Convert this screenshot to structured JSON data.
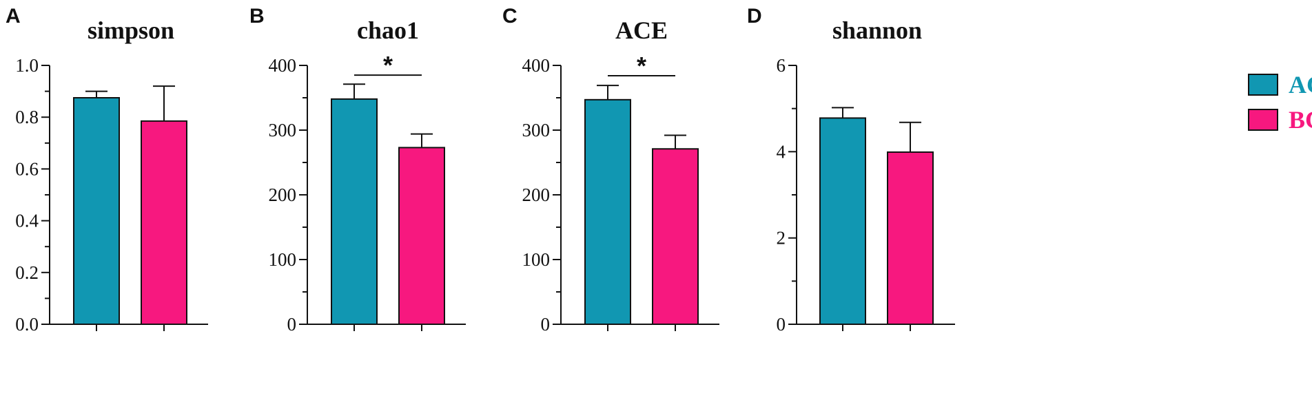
{
  "figure": {
    "panels": [
      "A",
      "B",
      "C",
      "D"
    ]
  },
  "colors": {
    "AG": "#1197b2",
    "BC": "#f7187f",
    "axis": "#111111"
  },
  "legend": [
    {
      "name": "AG",
      "color": "#1197b2"
    },
    {
      "name": "BC",
      "color": "#f7187f"
    }
  ],
  "chart_data": [
    {
      "panel": "A",
      "type": "bar",
      "title": "simpson",
      "categories": [
        "AG",
        "BC"
      ],
      "values": [
        0.875,
        0.785
      ],
      "errors": [
        0.025,
        0.135
      ],
      "ylim": [
        0,
        1.0
      ],
      "yticks": [
        "0.0",
        "0.2",
        "0.4",
        "0.6",
        "0.8",
        "1.0"
      ],
      "ytick_values": [
        0,
        0.2,
        0.4,
        0.6,
        0.8,
        1.0
      ],
      "minor_step": 0.1,
      "significance": null
    },
    {
      "panel": "B",
      "type": "bar",
      "title": "chao1",
      "categories": [
        "AG",
        "BC"
      ],
      "values": [
        348,
        273
      ],
      "errors": [
        23,
        21
      ],
      "ylim": [
        0,
        400
      ],
      "yticks": [
        "0",
        "100",
        "200",
        "300",
        "400"
      ],
      "ytick_values": [
        0,
        100,
        200,
        300,
        400
      ],
      "minor_step": 50,
      "significance": {
        "label": "*",
        "level": 385
      }
    },
    {
      "panel": "C",
      "type": "bar",
      "title": "ACE",
      "categories": [
        "AG",
        "BC"
      ],
      "values": [
        347,
        271
      ],
      "errors": [
        22,
        21
      ],
      "ylim": [
        0,
        400
      ],
      "yticks": [
        "0",
        "100",
        "200",
        "300",
        "400"
      ],
      "ytick_values": [
        0,
        100,
        200,
        300,
        400
      ],
      "minor_step": 50,
      "significance": {
        "label": "*",
        "level": 384
      }
    },
    {
      "panel": "D",
      "type": "bar",
      "title": "shannon",
      "categories": [
        "AG",
        "BC"
      ],
      "values": [
        4.78,
        3.99
      ],
      "errors": [
        0.24,
        0.69
      ],
      "ylim": [
        0,
        6
      ],
      "yticks": [
        "0",
        "2",
        "4",
        "6"
      ],
      "ytick_values": [
        0,
        2,
        4,
        6
      ],
      "minor_step": 1,
      "significance": null
    }
  ]
}
